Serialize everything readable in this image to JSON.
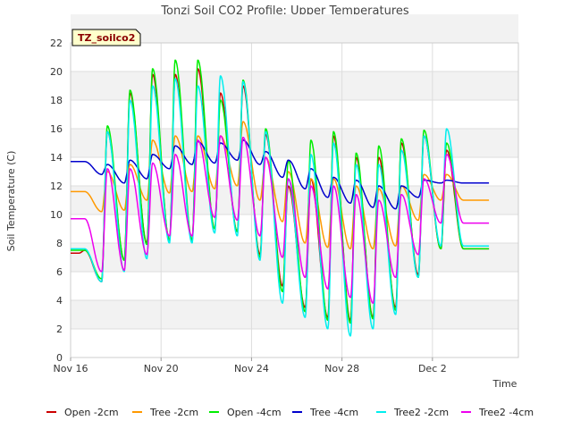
{
  "chart_data": {
    "type": "line",
    "title": "Tonzi Soil CO2 Profile: Upper Temperatures",
    "xlabel": "Time",
    "ylabel": "Soil Temperature (C)",
    "badge": "TZ_soilco2",
    "xlim": [
      0,
      19.8
    ],
    "ylim": [
      0,
      22
    ],
    "y_ticks": [
      0,
      2,
      4,
      6,
      8,
      10,
      12,
      14,
      16,
      18,
      20,
      22
    ],
    "x_ticks": [
      {
        "day": 0,
        "label": "Nov 16"
      },
      {
        "day": 4,
        "label": "Nov 20"
      },
      {
        "day": 8,
        "label": "Nov 24"
      },
      {
        "day": 12,
        "label": "Nov 28"
      },
      {
        "day": 16,
        "label": "Dec 2"
      }
    ],
    "grid": true,
    "legend_position": "bottom",
    "series": [
      {
        "name": "Open -2cm",
        "color": "#cc0000",
        "min": [
          7.3,
          5.3,
          6.8,
          8.0,
          8.2,
          8.2,
          9.0,
          8.8,
          7.2,
          5.0,
          3.5,
          2.8,
          2.6,
          2.8,
          3.5,
          5.8,
          7.6
        ],
        "max": [
          7.5,
          15.8,
          18.5,
          19.8,
          19.8,
          20.2,
          18.5,
          19.0,
          15.6,
          12.0,
          12.5,
          15.5,
          14.0,
          14.0,
          15.0,
          15.5,
          14.5
        ]
      },
      {
        "name": "Tree -2cm",
        "color": "#ff9900",
        "min": [
          11.6,
          10.2,
          10.3,
          11.0,
          11.5,
          11.6,
          11.8,
          12.0,
          11.0,
          9.5,
          8.0,
          7.7,
          7.6,
          7.6,
          7.8,
          9.6,
          11.0
        ],
        "max": [
          11.6,
          13.0,
          13.5,
          15.2,
          15.5,
          15.5,
          15.5,
          16.5,
          14.0,
          13.0,
          12.5,
          12.5,
          12.0,
          11.8,
          12.0,
          12.8,
          12.8
        ]
      },
      {
        "name": "Open -4cm",
        "color": "#00ee00",
        "min": [
          7.5,
          5.5,
          6.8,
          7.9,
          8.2,
          8.2,
          9.0,
          8.8,
          7.0,
          4.6,
          3.2,
          2.6,
          2.4,
          2.7,
          3.3,
          5.6,
          7.6
        ],
        "max": [
          7.5,
          16.2,
          18.7,
          20.2,
          20.8,
          20.8,
          18.0,
          19.4,
          16.0,
          13.8,
          15.2,
          15.8,
          14.3,
          14.8,
          15.3,
          15.9,
          15.0
        ]
      },
      {
        "name": "Tree -4cm",
        "color": "#0000cc",
        "min": [
          13.7,
          12.8,
          12.2,
          12.5,
          13.2,
          13.5,
          13.6,
          13.8,
          13.5,
          12.6,
          11.8,
          11.2,
          10.8,
          10.5,
          10.4,
          11.2,
          12.2
        ],
        "max": [
          13.7,
          13.5,
          13.8,
          14.2,
          14.8,
          15.1,
          15.0,
          15.2,
          14.4,
          13.8,
          13.2,
          12.6,
          12.4,
          12.0,
          12.0,
          12.4,
          12.4
        ]
      },
      {
        "name": "Tree2 -2cm",
        "color": "#00eeee",
        "min": [
          7.6,
          5.3,
          6.0,
          6.9,
          8.0,
          8.0,
          8.7,
          8.5,
          6.8,
          3.8,
          2.8,
          2.0,
          1.5,
          2.0,
          3.0,
          5.6,
          7.8
        ],
        "max": [
          7.6,
          15.8,
          18.0,
          19.0,
          19.5,
          19.0,
          19.7,
          19.3,
          15.8,
          12.5,
          14.2,
          15.0,
          13.5,
          13.5,
          14.5,
          15.5,
          16.0
        ]
      },
      {
        "name": "Tree2 -4cm",
        "color": "#ee00ee",
        "min": [
          9.7,
          6.0,
          6.1,
          7.2,
          8.5,
          8.5,
          9.8,
          9.6,
          8.5,
          7.0,
          5.6,
          4.8,
          4.2,
          3.8,
          5.6,
          7.2,
          9.4
        ],
        "max": [
          9.7,
          13.2,
          13.2,
          13.6,
          14.2,
          15.2,
          15.5,
          15.4,
          14.0,
          12.5,
          12.0,
          12.0,
          11.4,
          11.0,
          11.4,
          12.5,
          14.2
        ]
      }
    ]
  }
}
